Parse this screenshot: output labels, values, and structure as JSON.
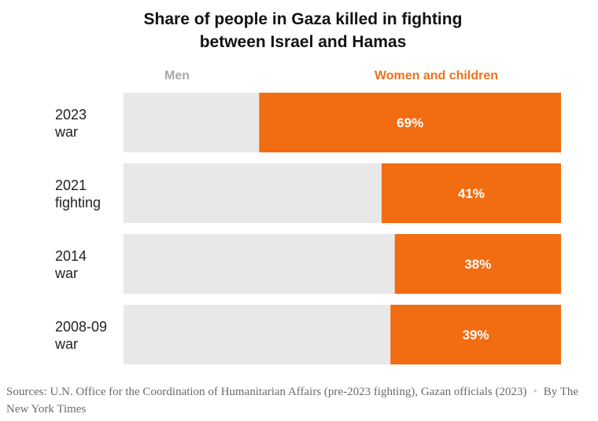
{
  "header": {
    "title_line1": "Share of people in Gaza killed in fighting",
    "title_line2": "between Israel and Hamas"
  },
  "legend": {
    "men": "Men",
    "women_children": "Women and children"
  },
  "colors": {
    "men": "#e8e8e8",
    "women_children": "#f26c12",
    "label_text": "#ffffff"
  },
  "chart_data": {
    "type": "bar",
    "orientation": "horizontal-stacked-100",
    "title": "Share of people in Gaza killed in fighting between Israel and Hamas",
    "categories": [
      [
        "2023",
        "war"
      ],
      [
        "2021",
        "fighting"
      ],
      [
        "2014",
        "war"
      ],
      [
        "2008-09",
        "war"
      ]
    ],
    "series": [
      {
        "name": "Men",
        "values": [
          31,
          59,
          62,
          61
        ]
      },
      {
        "name": "Women and children",
        "values": [
          69,
          41,
          38,
          39
        ],
        "labels": [
          "69%",
          "41%",
          "38%",
          "39%"
        ]
      }
    ],
    "xlim": [
      0,
      100
    ],
    "grid": false,
    "legend_position": "top"
  },
  "footer": {
    "sources": "Sources: U.N. Office for the Coordination of Humanitarian Affairs (pre-2023 fighting), Gazan officials (2023)",
    "credit": "By The New York Times"
  }
}
